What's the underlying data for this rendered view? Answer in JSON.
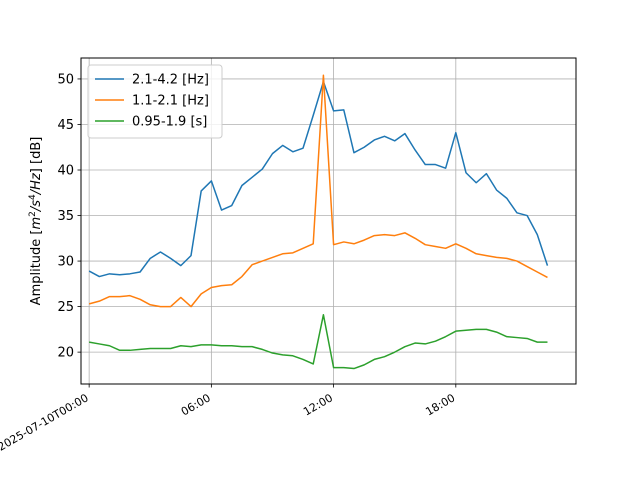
{
  "chart_data": {
    "type": "line",
    "title": "",
    "xlabel": "",
    "ylabel_prefix": "Amplitude [",
    "ylabel_suffix": "] [dB]",
    "ylabel_unit_tokens": [
      {
        "t": "m",
        "s": "italic"
      },
      {
        "t": "2",
        "s": "sup"
      },
      {
        "t": "/",
        "s": "italic"
      },
      {
        "t": "s",
        "s": "italic"
      },
      {
        "t": "4",
        "s": "sup"
      },
      {
        "t": "/",
        "s": "italic"
      },
      {
        "t": "Hz",
        "s": "italic"
      }
    ],
    "x_start": "2025-07-10T00:00",
    "x_step_hours": 0.5,
    "x_range_hours": [
      -0.4,
      23.9
    ],
    "xticks": [
      {
        "hour": 0,
        "label": "2025-07-10T00:00"
      },
      {
        "hour": 6,
        "label": "06:00"
      },
      {
        "hour": 12,
        "label": "12:00"
      },
      {
        "hour": 18,
        "label": "18:00"
      }
    ],
    "ylim": [
      16.5,
      52.3
    ],
    "yticks": [
      20,
      25,
      30,
      35,
      40,
      45,
      50
    ],
    "grid": true,
    "legend_position": "upper-left",
    "series": [
      {
        "name": "2.1-4.2 [Hz]",
        "color": "#1f77b4",
        "values": [
          28.9,
          28.3,
          28.6,
          28.5,
          28.6,
          28.8,
          30.3,
          31.0,
          30.3,
          29.5,
          30.6,
          37.7,
          38.8,
          35.6,
          36.1,
          38.3,
          39.2,
          40.1,
          41.8,
          42.7,
          42.0,
          42.4,
          46.0,
          49.7,
          46.5,
          46.6,
          41.9,
          42.5,
          43.3,
          43.7,
          43.2,
          44.0,
          42.2,
          40.6,
          40.6,
          40.2,
          44.1,
          39.7,
          38.6,
          39.6,
          37.8,
          36.9,
          35.3,
          35.0,
          32.9,
          29.5
        ]
      },
      {
        "name": "1.1-2.1 [Hz]",
        "color": "#ff7f0e",
        "values": [
          25.3,
          25.6,
          26.1,
          26.1,
          26.2,
          25.8,
          25.2,
          25.0,
          25.0,
          26.0,
          25.0,
          26.4,
          27.1,
          27.3,
          27.4,
          28.3,
          29.6,
          30.0,
          30.4,
          30.8,
          30.9,
          31.4,
          31.9,
          50.4,
          31.8,
          32.1,
          31.9,
          32.3,
          32.8,
          32.9,
          32.8,
          33.1,
          32.5,
          31.8,
          31.6,
          31.4,
          31.9,
          31.4,
          30.8,
          30.6,
          30.4,
          30.3,
          30.0,
          29.4,
          28.8,
          28.2
        ]
      },
      {
        "name": "0.95-1.9 [s]",
        "color": "#2ca02c",
        "values": [
          21.1,
          20.9,
          20.7,
          20.2,
          20.2,
          20.3,
          20.4,
          20.4,
          20.4,
          20.7,
          20.6,
          20.8,
          20.8,
          20.7,
          20.7,
          20.6,
          20.6,
          20.3,
          19.9,
          19.7,
          19.6,
          19.2,
          18.7,
          24.1,
          18.3,
          18.3,
          18.2,
          18.6,
          19.2,
          19.5,
          20.0,
          20.6,
          21.0,
          20.9,
          21.2,
          21.7,
          22.3,
          22.4,
          22.5,
          22.5,
          22.2,
          21.7,
          21.6,
          21.5,
          21.1,
          21.1
        ]
      }
    ]
  }
}
